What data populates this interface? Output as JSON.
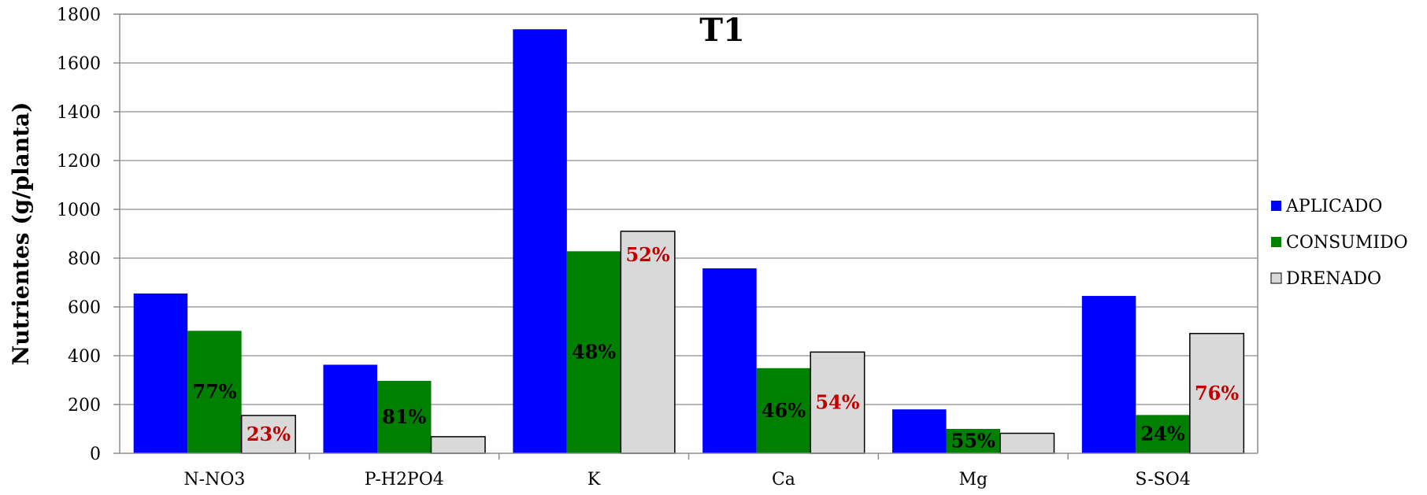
{
  "chart_data": {
    "type": "bar",
    "title": "T1",
    "xlabel": "",
    "ylabel": "Nutrientes  (g/planta)",
    "ylim": [
      0,
      1800
    ],
    "yticks": [
      0,
      200,
      400,
      600,
      800,
      1000,
      1200,
      1400,
      1600,
      1800
    ],
    "categories": [
      "N-NO3",
      "P-H2PO4",
      "K",
      "Ca",
      "Mg",
      "S-SO4"
    ],
    "grid": true,
    "legend_position": "right",
    "series": [
      {
        "name": "APLICADO",
        "color": "#0000FF",
        "values": [
          655,
          363,
          1738,
          758,
          180,
          645
        ]
      },
      {
        "name": "CONSUMIDO",
        "color": "#008000",
        "values": [
          502,
          297,
          828,
          349,
          100,
          157
        ]
      },
      {
        "name": "DRENADO",
        "color": "#D9D9D9",
        "values": [
          155,
          68,
          910,
          415,
          82,
          491
        ]
      }
    ],
    "annotations": [
      {
        "series": "CONSUMIDO",
        "category": "N-NO3",
        "text": "77%",
        "color": "#000000"
      },
      {
        "series": "DRENADO",
        "category": "N-NO3",
        "text": "23%",
        "color": "#C00000"
      },
      {
        "series": "CONSUMIDO",
        "category": "P-H2PO4",
        "text": "81%",
        "color": "#000000"
      },
      {
        "series": "CONSUMIDO",
        "category": "K",
        "text": "48%",
        "color": "#000000"
      },
      {
        "series": "DRENADO",
        "category": "K",
        "text": "52%",
        "color": "#C00000"
      },
      {
        "series": "CONSUMIDO",
        "category": "Ca",
        "text": "46%",
        "color": "#000000"
      },
      {
        "series": "DRENADO",
        "category": "Ca",
        "text": "54%",
        "color": "#C00000"
      },
      {
        "series": "CONSUMIDO",
        "category": "Mg",
        "text": "55%",
        "color": "#000000"
      },
      {
        "series": "CONSUMIDO",
        "category": "S-SO4",
        "text": "24%",
        "color": "#000000"
      },
      {
        "series": "DRENADO",
        "category": "S-SO4",
        "text": "76%",
        "color": "#C00000"
      }
    ]
  }
}
